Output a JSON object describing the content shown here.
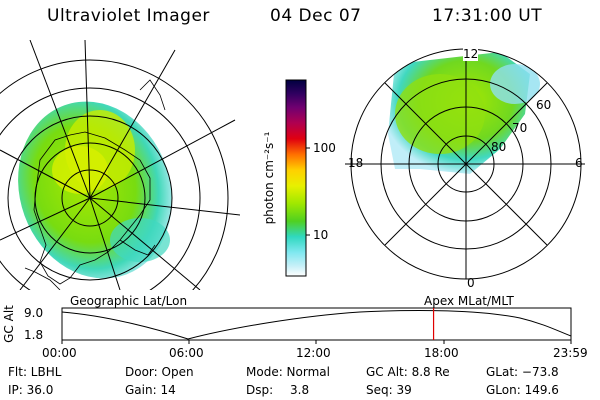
{
  "header": {
    "instrument": "Ultraviolet Imager",
    "date": "04 Dec 07",
    "time": "17:31:00 UT"
  },
  "colorbar": {
    "label": "photon cm⁻²s⁻¹",
    "ticks": [
      "100",
      "10"
    ],
    "colors": [
      "#000040",
      "#300060",
      "#700070",
      "#b00050",
      "#e00010",
      "#ff7000",
      "#ffd000",
      "#e8f000",
      "#a0e800",
      "#50d020",
      "#30d8c0",
      "#80e8f0",
      "#c8f0f8",
      "#ffffff"
    ]
  },
  "left_map": {
    "caption": "Geographic Lat/Lon"
  },
  "right_map": {
    "caption": "Apex MLat/MLT",
    "mlt_labels": {
      "top": "12",
      "left": "18",
      "right": "6",
      "bottom": "0"
    },
    "lat_labels": [
      "60",
      "70",
      "80"
    ]
  },
  "altitude_plot": {
    "ylabel": "GC Alt",
    "y_ticks": [
      "9.0",
      "1.8"
    ],
    "x_ticks": [
      "00:00",
      "06:00",
      "12:00",
      "18:00",
      "23:59"
    ],
    "current_time_fraction": 0.73,
    "marker_color": "#e00000"
  },
  "info": {
    "row1": {
      "filter": "Flt: LBHL",
      "door": "Door: Open",
      "mode": "Mode: Normal",
      "gc_alt": "GC Alt: 8.8 Re",
      "glat": "GLat: −73.8"
    },
    "row2": {
      "ip": "IP: 36.0",
      "gain": "Gain: 14",
      "dsp_label": "Dsp:",
      "dsp_value": "3.8",
      "seq": "Seq: 39",
      "glon": "GLon: 149.6"
    }
  }
}
